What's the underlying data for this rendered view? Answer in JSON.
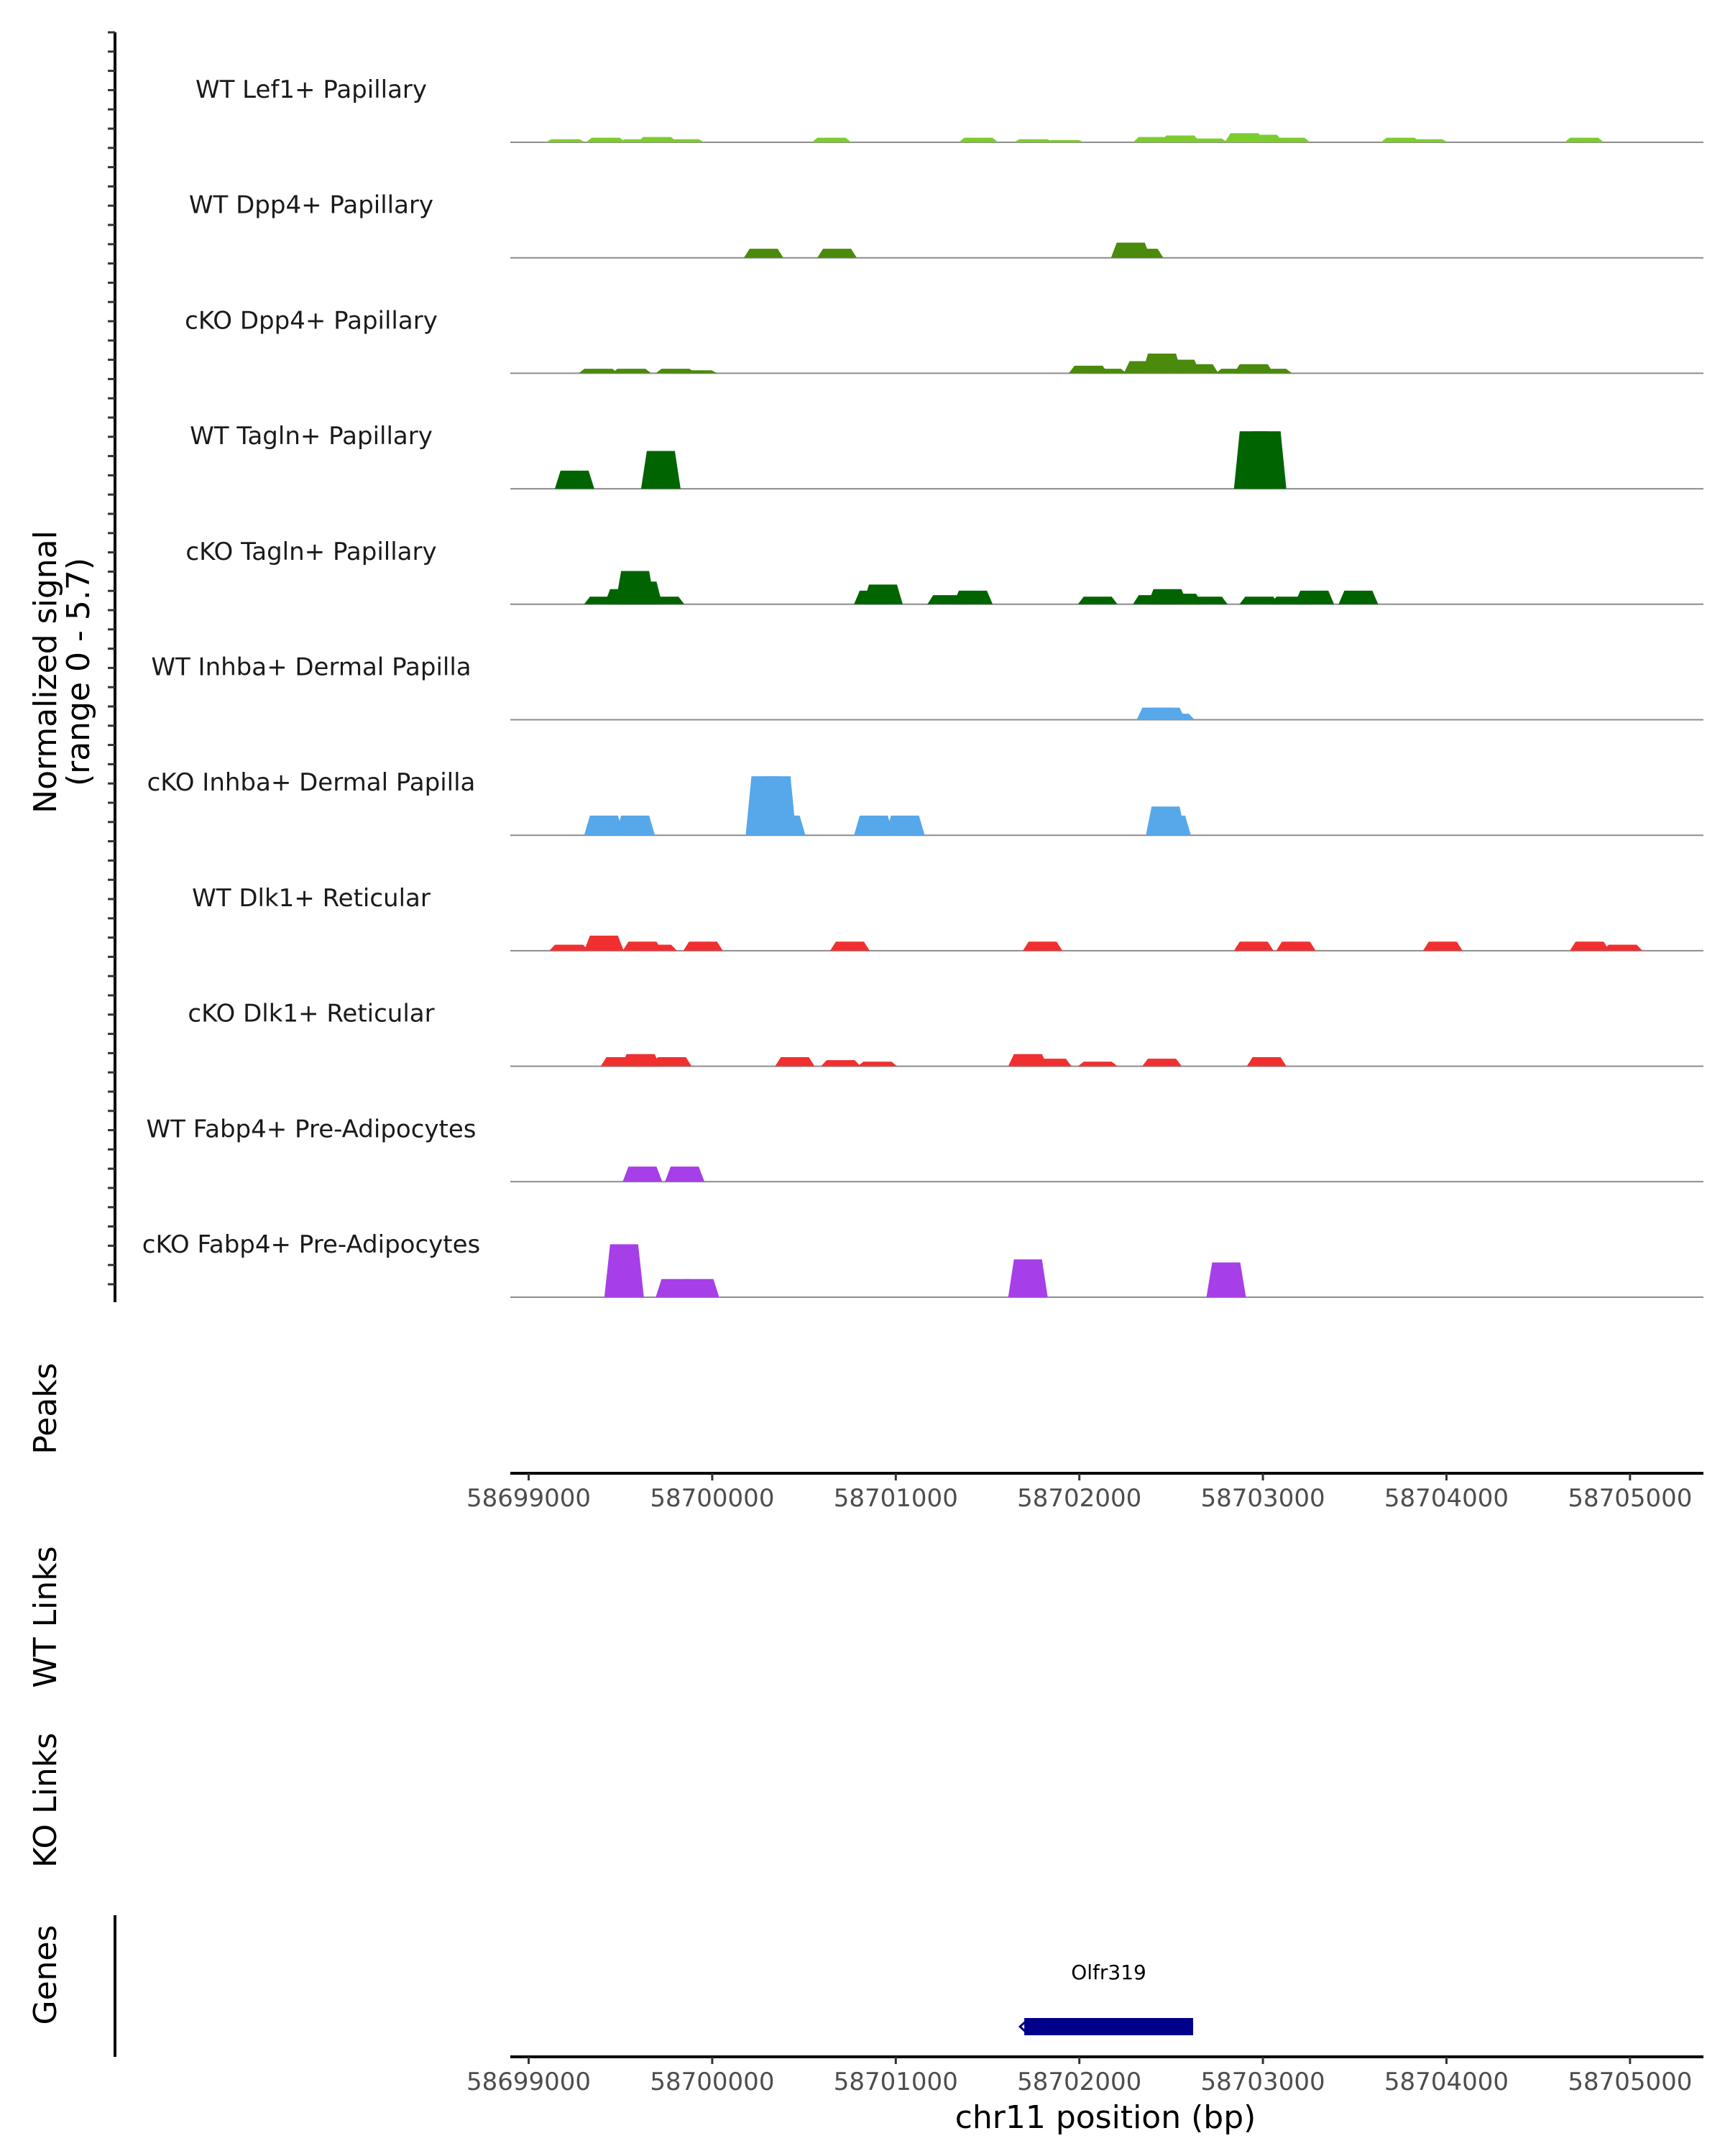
{
  "chart_data": {
    "type": "area",
    "title": "",
    "chromosome": "chr11",
    "xlabel": "chr11 position (bp)",
    "ylabel": "Normalized signal",
    "ylabel_range": "(range 0 - 5.7)",
    "xlim": [
      58698900,
      58705400
    ],
    "ylim": [
      0,
      5.7
    ],
    "x_ticks": [
      58699000,
      58700000,
      58701000,
      58702000,
      58703000,
      58704000,
      58705000
    ],
    "x_tick_labels": [
      "58699000",
      "58700000",
      "58701000",
      "58702000",
      "58703000",
      "58704000",
      "58705000"
    ],
    "panel_labels": {
      "peaks": "Peaks",
      "wt_links": "WT Links",
      "ko_links": "KO Links",
      "genes": "Genes"
    },
    "series": [
      {
        "name": "WT Lef1+ Papillary",
        "color": "#7ccd2b",
        "points": [
          [
            58699200,
            0.2
          ],
          [
            58699420,
            0.3
          ],
          [
            58699600,
            0.2
          ],
          [
            58699700,
            0.35
          ],
          [
            58699850,
            0.2
          ],
          [
            58700650,
            0.3
          ],
          [
            58701450,
            0.3
          ],
          [
            58701750,
            0.2
          ],
          [
            58701920,
            0.15
          ],
          [
            58702400,
            0.35
          ],
          [
            58702550,
            0.45
          ],
          [
            58702700,
            0.25
          ],
          [
            58702900,
            0.6
          ],
          [
            58703000,
            0.5
          ],
          [
            58703150,
            0.3
          ],
          [
            58703750,
            0.3
          ],
          [
            58703900,
            0.2
          ],
          [
            58704750,
            0.3
          ]
        ]
      },
      {
        "name": "WT Dpp4+ Papillary",
        "color": "#4a8a0c",
        "points": [
          [
            58700280,
            0.6
          ],
          [
            58700680,
            0.6
          ],
          [
            58702280,
            1.0
          ],
          [
            58702350,
            0.6
          ]
        ]
      },
      {
        "name": "cKO Dpp4+ Papillary",
        "color": "#4a8a0c",
        "points": [
          [
            58699380,
            0.3
          ],
          [
            58699560,
            0.3
          ],
          [
            58699800,
            0.3
          ],
          [
            58699920,
            0.2
          ],
          [
            58702050,
            0.5
          ],
          [
            58702150,
            0.3
          ],
          [
            58702350,
            0.8
          ],
          [
            58702450,
            1.3
          ],
          [
            58702550,
            0.9
          ],
          [
            58702650,
            0.6
          ],
          [
            58702850,
            0.3
          ],
          [
            58702950,
            0.6
          ],
          [
            58703050,
            0.3
          ]
        ]
      },
      {
        "name": "WT Tagln+ Papillary",
        "color": "#006400",
        "points": [
          [
            58699250,
            1.2
          ],
          [
            58699720,
            2.5
          ],
          [
            58702950,
            3.8
          ],
          [
            58703020,
            3.8
          ]
        ]
      },
      {
        "name": "cKO Tagln+ Papillary",
        "color": "#006400",
        "points": [
          [
            58699410,
            0.5
          ],
          [
            58699520,
            1.0
          ],
          [
            58699580,
            2.2
          ],
          [
            58699620,
            1.5
          ],
          [
            58699740,
            0.5
          ],
          [
            58700880,
            0.9
          ],
          [
            58700930,
            1.3
          ],
          [
            58701280,
            0.6
          ],
          [
            58701420,
            0.9
          ],
          [
            58702100,
            0.5
          ],
          [
            58702400,
            0.6
          ],
          [
            58702480,
            1.0
          ],
          [
            58702560,
            0.7
          ],
          [
            58702700,
            0.5
          ],
          [
            58702980,
            0.5
          ],
          [
            58703150,
            0.5
          ],
          [
            58703280,
            0.9
          ],
          [
            58703520,
            0.9
          ]
        ]
      },
      {
        "name": "WT Inhba+ Dermal Papilla",
        "color": "#56a8ea",
        "points": [
          [
            58702420,
            0.8
          ],
          [
            58702470,
            0.8
          ],
          [
            58702520,
            0.4
          ]
        ]
      },
      {
        "name": "cKO Inhba+ Dermal Papilla",
        "color": "#56a8ea",
        "points": [
          [
            58699410,
            1.3
          ],
          [
            58699580,
            1.3
          ],
          [
            58700290,
            3.9
          ],
          [
            58700350,
            3.9
          ],
          [
            58700400,
            1.3
          ],
          [
            58700880,
            1.3
          ],
          [
            58701050,
            1.3
          ],
          [
            58702470,
            1.9
          ],
          [
            58702500,
            1.3
          ]
        ]
      },
      {
        "name": "WT Dlk1+ Reticular",
        "color": "#f03030",
        "points": [
          [
            58699220,
            0.4
          ],
          [
            58699410,
            1.0
          ],
          [
            58699620,
            0.6
          ],
          [
            58699700,
            0.4
          ],
          [
            58699950,
            0.6
          ],
          [
            58700750,
            0.6
          ],
          [
            58701800,
            0.6
          ],
          [
            58702950,
            0.6
          ],
          [
            58703180,
            0.6
          ],
          [
            58703980,
            0.6
          ],
          [
            58704780,
            0.6
          ],
          [
            58704960,
            0.4
          ]
        ]
      },
      {
        "name": "cKO Dlk1+ Reticular",
        "color": "#f03030",
        "points": [
          [
            58699500,
            0.6
          ],
          [
            58699610,
            0.8
          ],
          [
            58699780,
            0.6
          ],
          [
            58700450,
            0.6
          ],
          [
            58700700,
            0.4
          ],
          [
            58700900,
            0.3
          ],
          [
            58701720,
            0.8
          ],
          [
            58701850,
            0.5
          ],
          [
            58702100,
            0.3
          ],
          [
            58702450,
            0.5
          ],
          [
            58703020,
            0.6
          ]
        ]
      },
      {
        "name": "WT Fabp4+ Pre-Adipocytes",
        "color": "#a63fe8",
        "points": [
          [
            58699620,
            1.0
          ],
          [
            58699850,
            1.0
          ]
        ]
      },
      {
        "name": "cKO Fabp4+ Pre-Adipocytes",
        "color": "#a63fe8",
        "points": [
          [
            58699520,
            3.5
          ],
          [
            58699800,
            1.2
          ],
          [
            58699930,
            1.2
          ],
          [
            58701720,
            2.5
          ],
          [
            58702800,
            2.3
          ]
        ]
      }
    ],
    "genes": [
      {
        "name": "Olfr319",
        "start": 58701700,
        "end": 58702620,
        "strand": "-",
        "color": "#00008b"
      }
    ]
  }
}
